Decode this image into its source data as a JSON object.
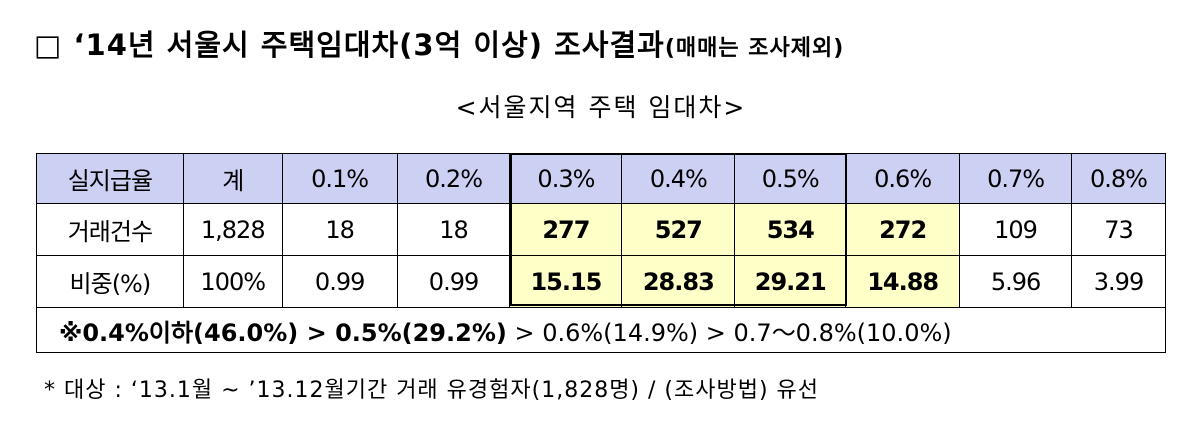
{
  "title": {
    "main": "□ ‘14년 서울시 주택임대차(3억 이상) 조사결과",
    "note": "(매매는 조사제외)"
  },
  "subtitle": "<서울지역 주택 임대차>",
  "table": {
    "header": [
      "실지급율",
      "계",
      "0.1%",
      "0.2%",
      "0.3%",
      "0.4%",
      "0.5%",
      "0.6%",
      "0.7%",
      "0.8%"
    ],
    "rows": [
      [
        "거래건수",
        "1,828",
        "18",
        "18",
        "277",
        "527",
        "534",
        "272",
        "109",
        "73"
      ],
      [
        "비중(%)",
        "100%",
        "0.99",
        "0.99",
        "15.15",
        "28.83",
        "29.21",
        "14.88",
        "5.96",
        "3.99"
      ]
    ],
    "summary": {
      "bold": "※0.4%이하(46.0%) > 0.5%(29.2%)",
      "normal": " > 0.6%(14.9%) > 0.7～0.8%(10.0%)"
    }
  },
  "footnote": "* 대상 : ‘13.1월 ~ ’13.12월기간 거래 유경험자(1,828명) / (조사방법) 유선"
}
